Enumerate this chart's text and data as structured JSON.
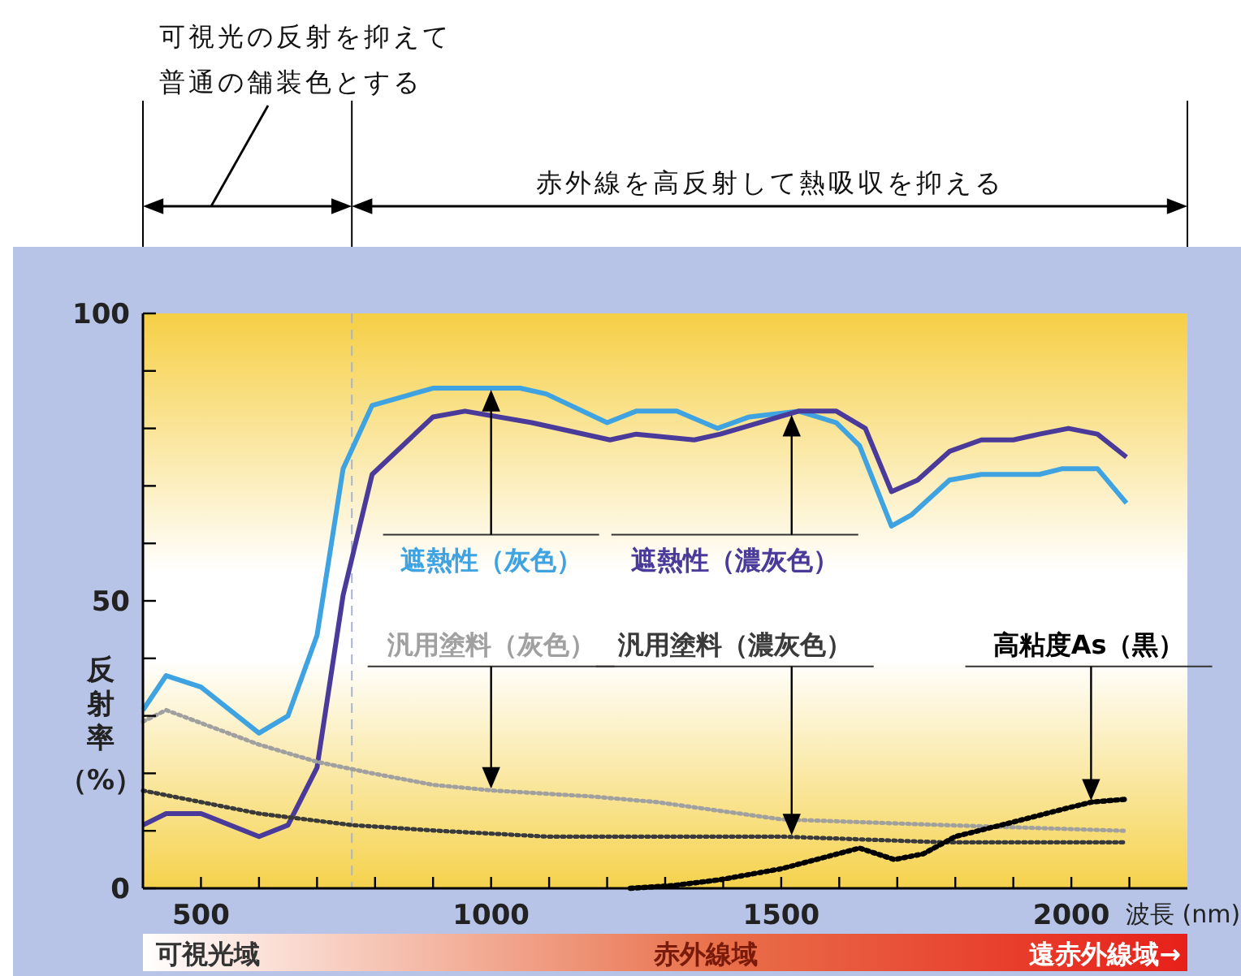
{
  "chart_data": {
    "type": "line",
    "xlabel": "波長 (nm)",
    "ylabel": "反射率（%）",
    "xlim": [
      400,
      2200
    ],
    "ylim": [
      0,
      100
    ],
    "xticks": [
      500,
      {
        "value": 600,
        "label": null
      },
      {
        "value": 700,
        "label": null
      },
      {
        "value": 800,
        "label": null
      },
      {
        "value": 900,
        "label": null
      },
      1000,
      {
        "value": 1100,
        "label": null
      },
      {
        "value": 1200,
        "label": null
      },
      {
        "value": 1300,
        "label": null
      },
      {
        "value": 1400,
        "label": null
      },
      1500,
      {
        "value": 1600,
        "label": null
      },
      {
        "value": 1700,
        "label": null
      },
      {
        "value": 1800,
        "label": null
      },
      {
        "value": 1900,
        "label": null
      },
      2000,
      {
        "value": 2100,
        "label": null
      }
    ],
    "yticks": [
      0,
      {
        "value": 10,
        "label": null
      },
      {
        "value": 20,
        "label": null
      },
      {
        "value": 30,
        "label": null
      },
      {
        "value": 40,
        "label": null
      },
      50,
      {
        "value": 60,
        "label": null
      },
      {
        "value": 70,
        "label": null
      },
      {
        "value": 80,
        "label": null
      },
      {
        "value": 90,
        "label": null
      },
      100
    ],
    "grid": false,
    "marker": "none",
    "ref_lines": [
      {
        "axis": "x",
        "value": 760,
        "color": "#aab4cc",
        "line_style": "dashed"
      }
    ],
    "annotations": [
      "可視光の反射を抑えて",
      "普通の舗装色とする",
      "赤外線を高反射して熱吸収を抑える",
      "可視光域",
      "赤外線域",
      "遠赤外線域→"
    ],
    "series": [
      {
        "name": "遮熱性（灰色）",
        "color": "#3ea3e0",
        "line_style": "solid",
        "x": [
          400,
          440,
          500,
          600,
          650,
          700,
          745,
          795,
          900,
          955,
          1050,
          1095,
          1200,
          1250,
          1320,
          1390,
          1445,
          1530,
          1595,
          1635,
          1690,
          1725,
          1790,
          1845,
          1945,
          1985,
          2045,
          2095
        ],
        "values": [
          31,
          37,
          35,
          27,
          30,
          44,
          73,
          84,
          87,
          87,
          87,
          86,
          81,
          83,
          83,
          80,
          82,
          83,
          81,
          77,
          63,
          65,
          71,
          72,
          72,
          73,
          73,
          67
        ]
      },
      {
        "name": "遮熱性（濃灰色）",
        "color": "#4a3a9a",
        "line_style": "solid",
        "x": [
          400,
          440,
          500,
          600,
          650,
          700,
          745,
          795,
          900,
          955,
          1070,
          1205,
          1250,
          1350,
          1395,
          1530,
          1595,
          1645,
          1690,
          1735,
          1790,
          1845,
          1900,
          1945,
          1995,
          2045,
          2095
        ],
        "values": [
          11,
          13,
          13,
          9,
          11,
          21,
          51,
          72,
          82,
          83,
          81,
          78,
          79,
          78,
          79,
          83,
          83,
          80,
          69,
          71,
          76,
          78,
          78,
          79,
          80,
          79,
          75
        ]
      },
      {
        "name": "汎用塗料（灰色）",
        "color": "#a0a0a0",
        "line_style": "dotted",
        "x": [
          400,
          440,
          600,
          700,
          795,
          900,
          1005,
          1170,
          1285,
          1500,
          1780,
          2095
        ],
        "values": [
          29,
          31,
          25,
          22,
          20,
          18,
          17,
          16,
          15,
          12,
          11,
          10
        ]
      },
      {
        "name": "汎用塗料（濃灰色）",
        "color": "#3a3a3a",
        "line_style": "dotted",
        "x": [
          400,
          450,
          600,
          760,
          910,
          1095,
          1285,
          1500,
          1780,
          2095
        ],
        "values": [
          17,
          16,
          13,
          11,
          10,
          9,
          9,
          9,
          8,
          8
        ]
      },
      {
        "name": "高粘度As（黒）",
        "color": "#000000",
        "line_style": "dotted",
        "x": [
          1240,
          1315,
          1395,
          1500,
          1635,
          1695,
          1745,
          1800,
          1895,
          1995,
          2035,
          2095
        ],
        "values": [
          0,
          0.5,
          1.5,
          3.4,
          7,
          5,
          6,
          9,
          11.4,
          14,
          15,
          15.5
        ]
      }
    ]
  }
}
